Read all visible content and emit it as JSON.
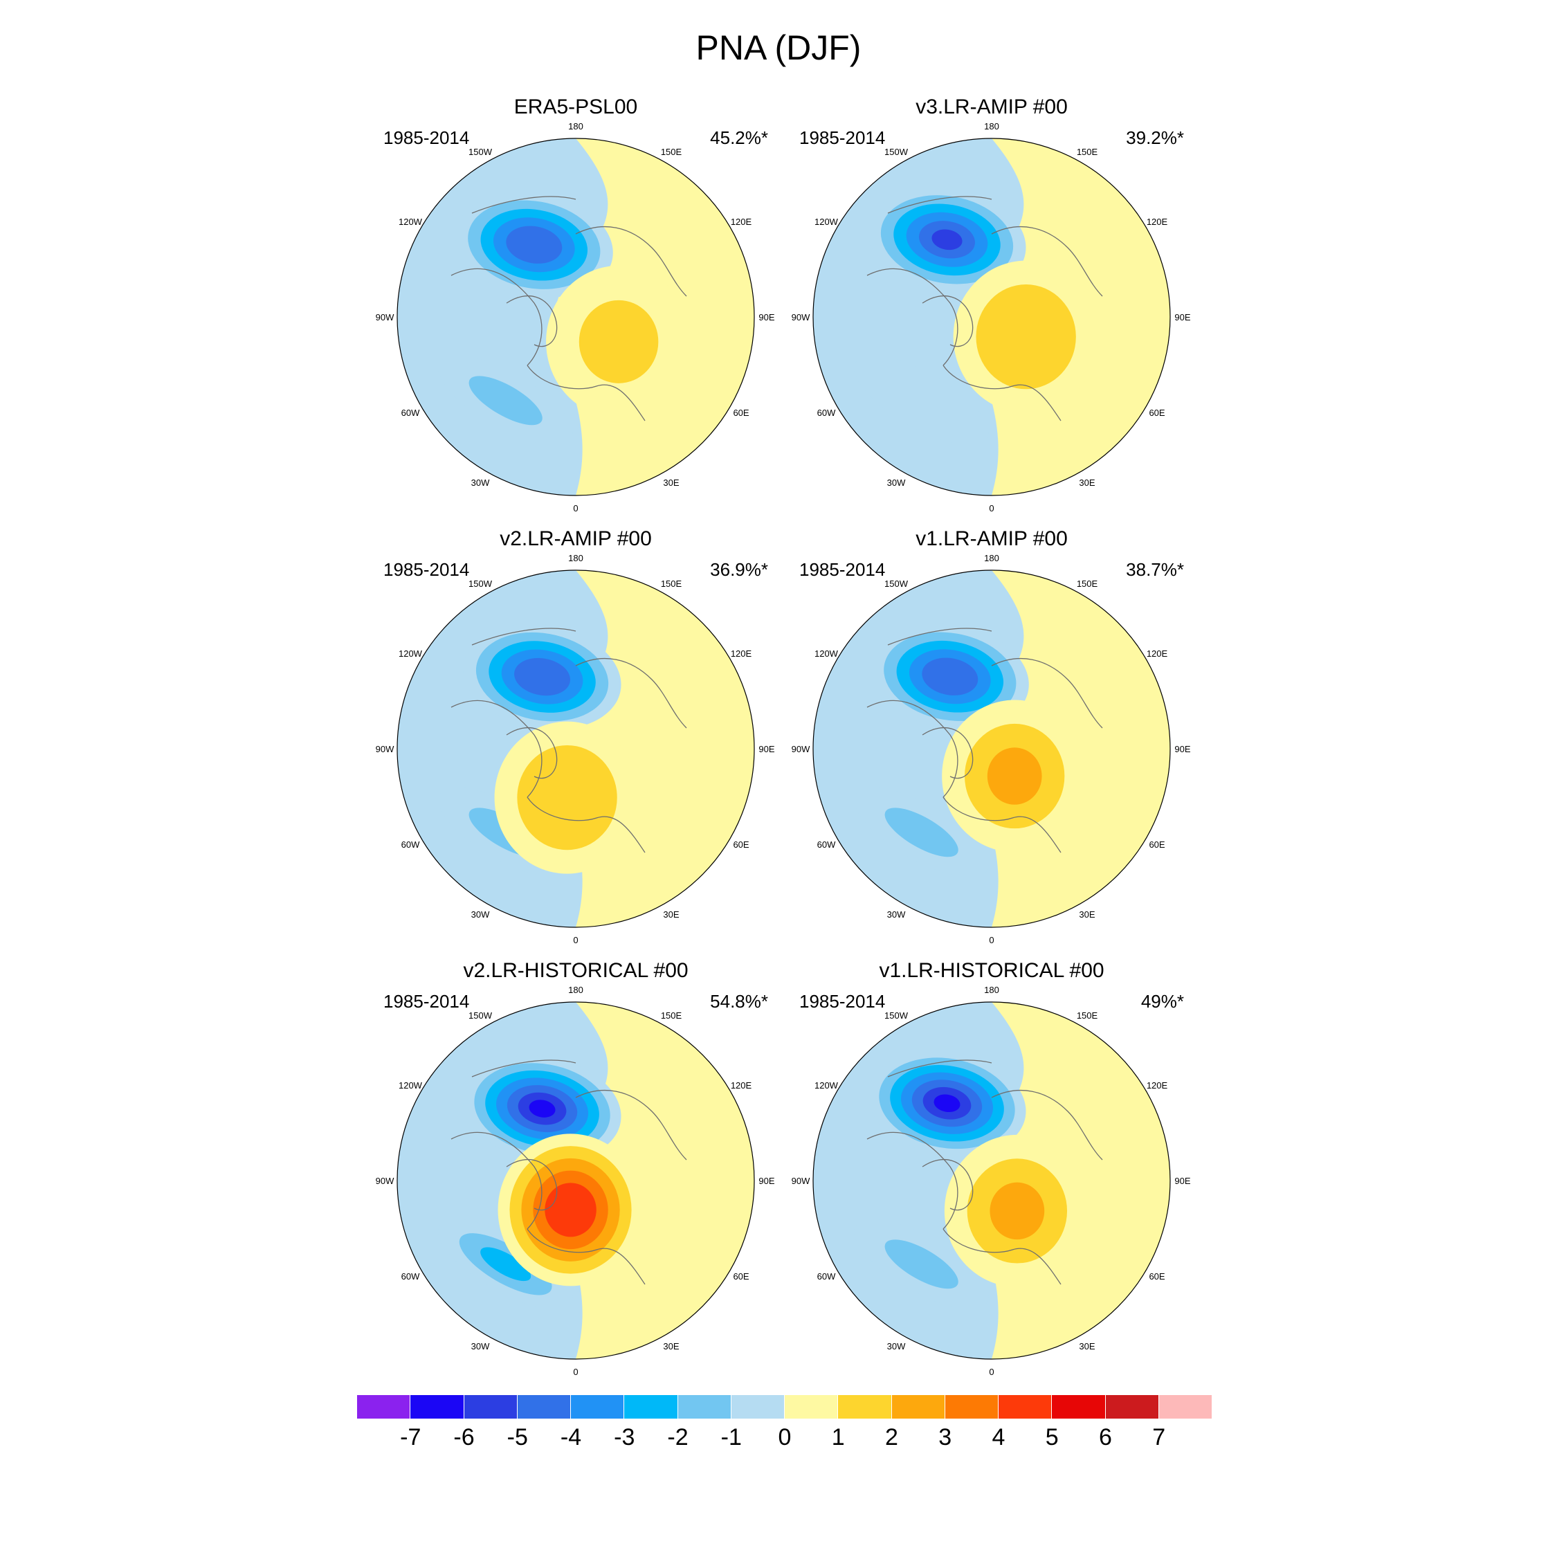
{
  "title": "PNA (DJF)",
  "longitude_labels": [
    "180",
    "150E",
    "120E",
    "90E",
    "60E",
    "30E",
    "0",
    "30W",
    "60W",
    "90W",
    "120W",
    "150W"
  ],
  "colorbar": {
    "ticks": [
      "-7",
      "-6",
      "-5",
      "-4",
      "-3",
      "-2",
      "-1",
      "0",
      "1",
      "2",
      "3",
      "4",
      "5",
      "6",
      "7"
    ],
    "colors": [
      "#8b22ee",
      "#1b06f5",
      "#2c3ee2",
      "#3171e8",
      "#2192f5",
      "#00b8f8",
      "#72c6f1",
      "#b5dcf2",
      "#fef9a2",
      "#fdd52e",
      "#fda80d",
      "#fd7a04",
      "#fd3a0a",
      "#e70606",
      "#cc1b1e",
      "#fdb9b9"
    ]
  },
  "panels": [
    {
      "title": "ERA5-PSL00",
      "period": "1985-2014",
      "percent": "45.2%*",
      "low": {
        "lon": -150,
        "colat": 42,
        "level": -5.4
      },
      "high": {
        "lon": 60,
        "colat": 25,
        "level": 1.9
      },
      "atlantic_low": -1.6
    },
    {
      "title": "v3.LR-AMIP  #00",
      "period": "1985-2014",
      "percent": "39.2%*",
      "low": {
        "lon": -150,
        "colat": 45,
        "level": -5.5
      },
      "high": {
        "lon": 60,
        "colat": 20,
        "level": 2.2
      },
      "atlantic_low": -1.2
    },
    {
      "title": "v2.LR-AMIP  #00",
      "period": "1985-2014",
      "percent": "36.9%*",
      "low": {
        "lon": -155,
        "colat": 40,
        "level": -5.3
      },
      "high": {
        "lon": -10,
        "colat": 25,
        "level": 2.3
      },
      "atlantic_low": -1.5
    },
    {
      "title": "v1.LR-AMIP  #00",
      "period": "1985-2014",
      "percent": "38.7%*",
      "low": {
        "lon": -150,
        "colat": 42,
        "level": -5.2
      },
      "high": {
        "lon": 40,
        "colat": 18,
        "level": 2.6
      },
      "atlantic_low": -1.5
    },
    {
      "title": "v2.LR-HISTORICAL  #00",
      "period": "1985-2014",
      "percent": "54.8%*",
      "low": {
        "lon": -155,
        "colat": 40,
        "level": -6.8
      },
      "high": {
        "lon": -10,
        "colat": 15,
        "level": 5.2
      },
      "atlantic_low": -2.8
    },
    {
      "title": "v1.LR-HISTORICAL  #00",
      "period": "1985-2014",
      "percent": "49%*",
      "low": {
        "lon": -150,
        "colat": 45,
        "level": -6.6
      },
      "high": {
        "lon": 40,
        "colat": 20,
        "level": 2.6
      },
      "atlantic_low": -1.5
    }
  ]
}
